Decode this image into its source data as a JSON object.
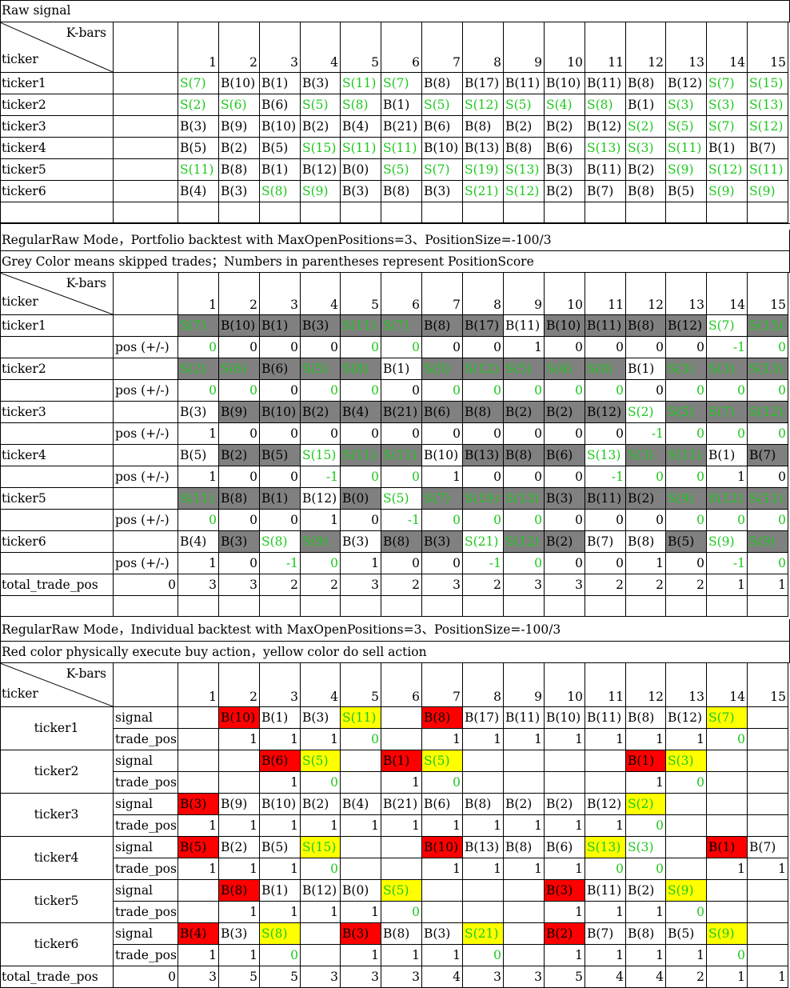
{
  "bars": [
    "1",
    "2",
    "3",
    "4",
    "5",
    "6",
    "7",
    "8",
    "9",
    "10",
    "11",
    "12",
    "13",
    "14",
    "15"
  ],
  "headers": {
    "kbars": "K-bars",
    "ticker": "ticker",
    "pos": "pos (+/-)",
    "signal": "signal",
    "trade_pos": "trade_pos",
    "total": "total_trade_pos"
  },
  "colors": {
    "green": "#1cc81c",
    "grey": "#808080",
    "red": "#ff0000",
    "yellow": "#ffff00"
  },
  "raw": {
    "title": "Raw signal",
    "rows": [
      {
        "ticker": "ticker1",
        "signals": [
          "S(7)",
          "B(10)",
          "B(1)",
          "B(3)",
          "S(11)",
          "S(7)",
          "B(8)",
          "B(17)",
          "B(11)",
          "B(10)",
          "B(11)",
          "B(8)",
          "B(12)",
          "S(7)",
          "S(15)"
        ]
      },
      {
        "ticker": "ticker2",
        "signals": [
          "S(2)",
          "S(6)",
          "B(6)",
          "S(5)",
          "S(8)",
          "B(1)",
          "S(5)",
          "S(12)",
          "S(5)",
          "S(4)",
          "S(8)",
          "B(1)",
          "S(3)",
          "S(3)",
          "S(13)"
        ]
      },
      {
        "ticker": "ticker3",
        "signals": [
          "B(3)",
          "B(9)",
          "B(10)",
          "B(2)",
          "B(4)",
          "B(21)",
          "B(6)",
          "B(8)",
          "B(2)",
          "B(2)",
          "B(12)",
          "S(2)",
          "S(5)",
          "S(7)",
          "S(12)"
        ]
      },
      {
        "ticker": "ticker4",
        "signals": [
          "B(5)",
          "B(2)",
          "B(5)",
          "S(15)",
          "S(11)",
          "S(11)",
          "B(10)",
          "B(13)",
          "B(8)",
          "B(6)",
          "S(13)",
          "S(3)",
          "S(11)",
          "B(1)",
          "B(7)"
        ]
      },
      {
        "ticker": "ticker5",
        "signals": [
          "S(11)",
          "B(8)",
          "B(1)",
          "B(12)",
          "B(0)",
          "S(5)",
          "S(7)",
          "S(19)",
          "S(13)",
          "B(3)",
          "B(11)",
          "B(2)",
          "S(9)",
          "S(12)",
          "S(11)"
        ]
      },
      {
        "ticker": "ticker6",
        "signals": [
          "B(4)",
          "B(3)",
          "S(8)",
          "S(9)",
          "B(3)",
          "B(8)",
          "B(3)",
          "S(21)",
          "S(12)",
          "B(2)",
          "B(7)",
          "B(8)",
          "B(5)",
          "S(9)",
          "S(9)"
        ]
      }
    ]
  },
  "portfolio": {
    "title1": "RegularRaw Mode，Portfolio backtest with MaxOpenPositions=3、PositionSize=-100/3",
    "title2": "Grey Color means skipped trades；Numbers in parentheses represent PositionScore",
    "rows": [
      {
        "ticker": "ticker1",
        "skipped": [
          1,
          1,
          1,
          1,
          1,
          1,
          1,
          1,
          0,
          1,
          1,
          1,
          1,
          0,
          1
        ],
        "pos": [
          "0",
          "0",
          "0",
          "0",
          "0",
          "0",
          "0",
          "0",
          "1",
          "0",
          "0",
          "0",
          "0",
          "-1",
          "0"
        ]
      },
      {
        "ticker": "ticker2",
        "skipped": [
          1,
          1,
          1,
          1,
          1,
          0,
          1,
          1,
          1,
          1,
          1,
          0,
          1,
          1,
          1
        ],
        "pos": [
          "0",
          "0",
          "0",
          "0",
          "0",
          "0",
          "0",
          "0",
          "0",
          "0",
          "0",
          "0",
          "0",
          "0",
          "0"
        ]
      },
      {
        "ticker": "ticker3",
        "skipped": [
          0,
          1,
          1,
          1,
          1,
          1,
          1,
          1,
          1,
          1,
          1,
          0,
          1,
          1,
          1
        ],
        "pos": [
          "1",
          "0",
          "0",
          "0",
          "0",
          "0",
          "0",
          "0",
          "0",
          "0",
          "0",
          "-1",
          "0",
          "0",
          "0"
        ]
      },
      {
        "ticker": "ticker4",
        "skipped": [
          0,
          1,
          1,
          0,
          1,
          1,
          0,
          1,
          1,
          1,
          0,
          1,
          1,
          0,
          1
        ],
        "pos": [
          "1",
          "0",
          "0",
          "-1",
          "0",
          "0",
          "1",
          "0",
          "0",
          "0",
          "-1",
          "0",
          "0",
          "1",
          "0"
        ]
      },
      {
        "ticker": "ticker5",
        "skipped": [
          1,
          1,
          1,
          0,
          1,
          0,
          1,
          1,
          1,
          1,
          1,
          1,
          1,
          1,
          1
        ],
        "pos": [
          "0",
          "0",
          "0",
          "1",
          "0",
          "-1",
          "0",
          "0",
          "0",
          "0",
          "0",
          "0",
          "0",
          "0",
          "0"
        ]
      },
      {
        "ticker": "ticker6",
        "skipped": [
          0,
          1,
          0,
          1,
          0,
          1,
          1,
          0,
          1,
          1,
          0,
          0,
          1,
          0,
          1
        ],
        "pos": [
          "1",
          "0",
          "-1",
          "0",
          "1",
          "0",
          "0",
          "-1",
          "0",
          "0",
          "0",
          "1",
          "0",
          "-1",
          "0"
        ]
      }
    ],
    "total": [
      "0",
      "3",
      "3",
      "2",
      "2",
      "3",
      "2",
      "3",
      "2",
      "3",
      "3",
      "2",
      "2",
      "2",
      "1",
      "1"
    ]
  },
  "individual": {
    "title1": "RegularRaw Mode，Individual backtest with MaxOpenPositions=3、PositionSize=-100/3",
    "title2": "Red color physically execute buy action，yellow color do sell action",
    "rows": [
      {
        "ticker": "ticker1",
        "signals": [
          "",
          "B(10)",
          "B(1)",
          "B(3)",
          "S(11)",
          "",
          "B(8)",
          "B(17)",
          "B(11)",
          "B(10)",
          "B(11)",
          "B(8)",
          "B(12)",
          "S(7)",
          ""
        ],
        "marks": [
          "",
          "r",
          "",
          "",
          "y",
          "",
          "r",
          "",
          "",
          "",
          "",
          "",
          "",
          "y",
          ""
        ],
        "pos": [
          "",
          "1",
          "1",
          "1",
          "0",
          "",
          "1",
          "1",
          "1",
          "1",
          "1",
          "1",
          "1",
          "0",
          ""
        ]
      },
      {
        "ticker": "ticker2",
        "signals": [
          "",
          "",
          "B(6)",
          "S(5)",
          "",
          "B(1)",
          "S(5)",
          "",
          "",
          "",
          "",
          "B(1)",
          "S(3)",
          "",
          ""
        ],
        "marks": [
          "",
          "",
          "r",
          "y",
          "",
          "r",
          "y",
          "",
          "",
          "",
          "",
          "r",
          "y",
          "",
          ""
        ],
        "pos": [
          "",
          "",
          "1",
          "0",
          "",
          "1",
          "0",
          "",
          "",
          "",
          "",
          "1",
          "0",
          "",
          ""
        ]
      },
      {
        "ticker": "ticker3",
        "signals": [
          "B(3)",
          "B(9)",
          "B(10)",
          "B(2)",
          "B(4)",
          "B(21)",
          "B(6)",
          "B(8)",
          "B(2)",
          "B(2)",
          "B(12)",
          "S(2)",
          "",
          "",
          ""
        ],
        "marks": [
          "r",
          "",
          "",
          "",
          "",
          "",
          "",
          "",
          "",
          "",
          "",
          "y",
          "",
          "",
          ""
        ],
        "pos": [
          "1",
          "1",
          "1",
          "1",
          "1",
          "1",
          "1",
          "1",
          "1",
          "1",
          "1",
          "0",
          "",
          "",
          ""
        ]
      },
      {
        "ticker": "ticker4",
        "signals": [
          "B(5)",
          "B(2)",
          "B(5)",
          "S(15)",
          "",
          "",
          "B(10)",
          "B(13)",
          "B(8)",
          "B(6)",
          "S(13)",
          "S(3)",
          "",
          "B(1)",
          "B(7)"
        ],
        "marks": [
          "r",
          "",
          "",
          "y",
          "",
          "",
          "r",
          "",
          "",
          "",
          "y",
          "",
          "",
          "r",
          ""
        ],
        "pos": [
          "1",
          "1",
          "1",
          "0",
          "",
          "",
          "1",
          "1",
          "1",
          "1",
          "0",
          "0",
          "",
          "1",
          "1"
        ]
      },
      {
        "ticker": "ticker5",
        "signals": [
          "",
          "B(8)",
          "B(1)",
          "B(12)",
          "B(0)",
          "S(5)",
          "",
          "",
          "",
          "B(3)",
          "B(11)",
          "B(2)",
          "S(9)",
          "",
          ""
        ],
        "marks": [
          "",
          "r",
          "",
          "",
          "",
          "y",
          "",
          "",
          "",
          "r",
          "",
          "",
          "y",
          "",
          ""
        ],
        "pos": [
          "",
          "1",
          "1",
          "1",
          "1",
          "0",
          "",
          "",
          "",
          "1",
          "1",
          "1",
          "0",
          "",
          ""
        ]
      },
      {
        "ticker": "ticker6",
        "signals": [
          "B(4)",
          "B(3)",
          "S(8)",
          "",
          "B(3)",
          "B(8)",
          "B(3)",
          "S(21)",
          "",
          "B(2)",
          "B(7)",
          "B(8)",
          "B(5)",
          "S(9)",
          ""
        ],
        "marks": [
          "r",
          "",
          "y",
          "",
          "r",
          "",
          "",
          "y",
          "",
          "r",
          "",
          "",
          "",
          "y",
          ""
        ],
        "pos": [
          "1",
          "1",
          "0",
          "",
          "1",
          "1",
          "1",
          "0",
          "",
          "1",
          "1",
          "1",
          "1",
          "0",
          ""
        ]
      }
    ],
    "total": [
      "0",
      "3",
      "5",
      "5",
      "3",
      "3",
      "3",
      "4",
      "3",
      "3",
      "5",
      "4",
      "4",
      "2",
      "1",
      "1"
    ]
  }
}
